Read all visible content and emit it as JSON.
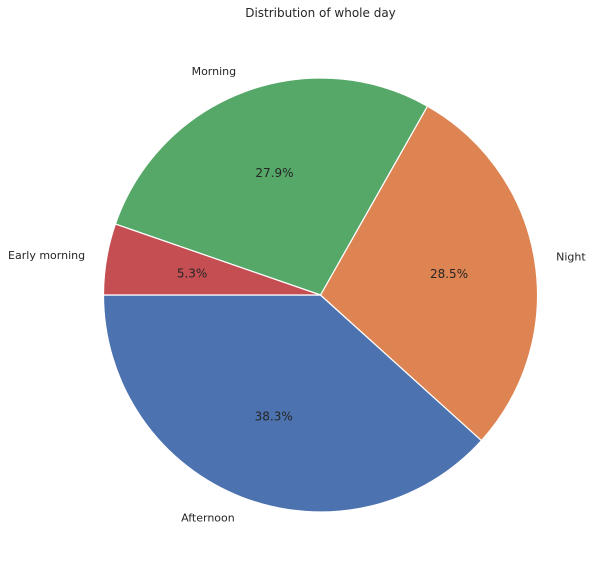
{
  "chart_data": {
    "type": "pie",
    "title": "Distribution of whole day",
    "slices": [
      {
        "label": "Afternoon",
        "value": 38.3,
        "pct_label": "38.3%",
        "color": "#4c72b0"
      },
      {
        "label": "Night",
        "value": 28.5,
        "pct_label": "28.5%",
        "color": "#dd8452"
      },
      {
        "label": "Morning",
        "value": 27.9,
        "pct_label": "27.9%",
        "color": "#55a868"
      },
      {
        "label": "Early morning",
        "value": 5.3,
        "pct_label": "5.3%",
        "color": "#c44e52"
      }
    ],
    "start_angle": 180,
    "direction": "counterclockwise",
    "wedge_edge_color": "#ffffff",
    "legend": false
  }
}
